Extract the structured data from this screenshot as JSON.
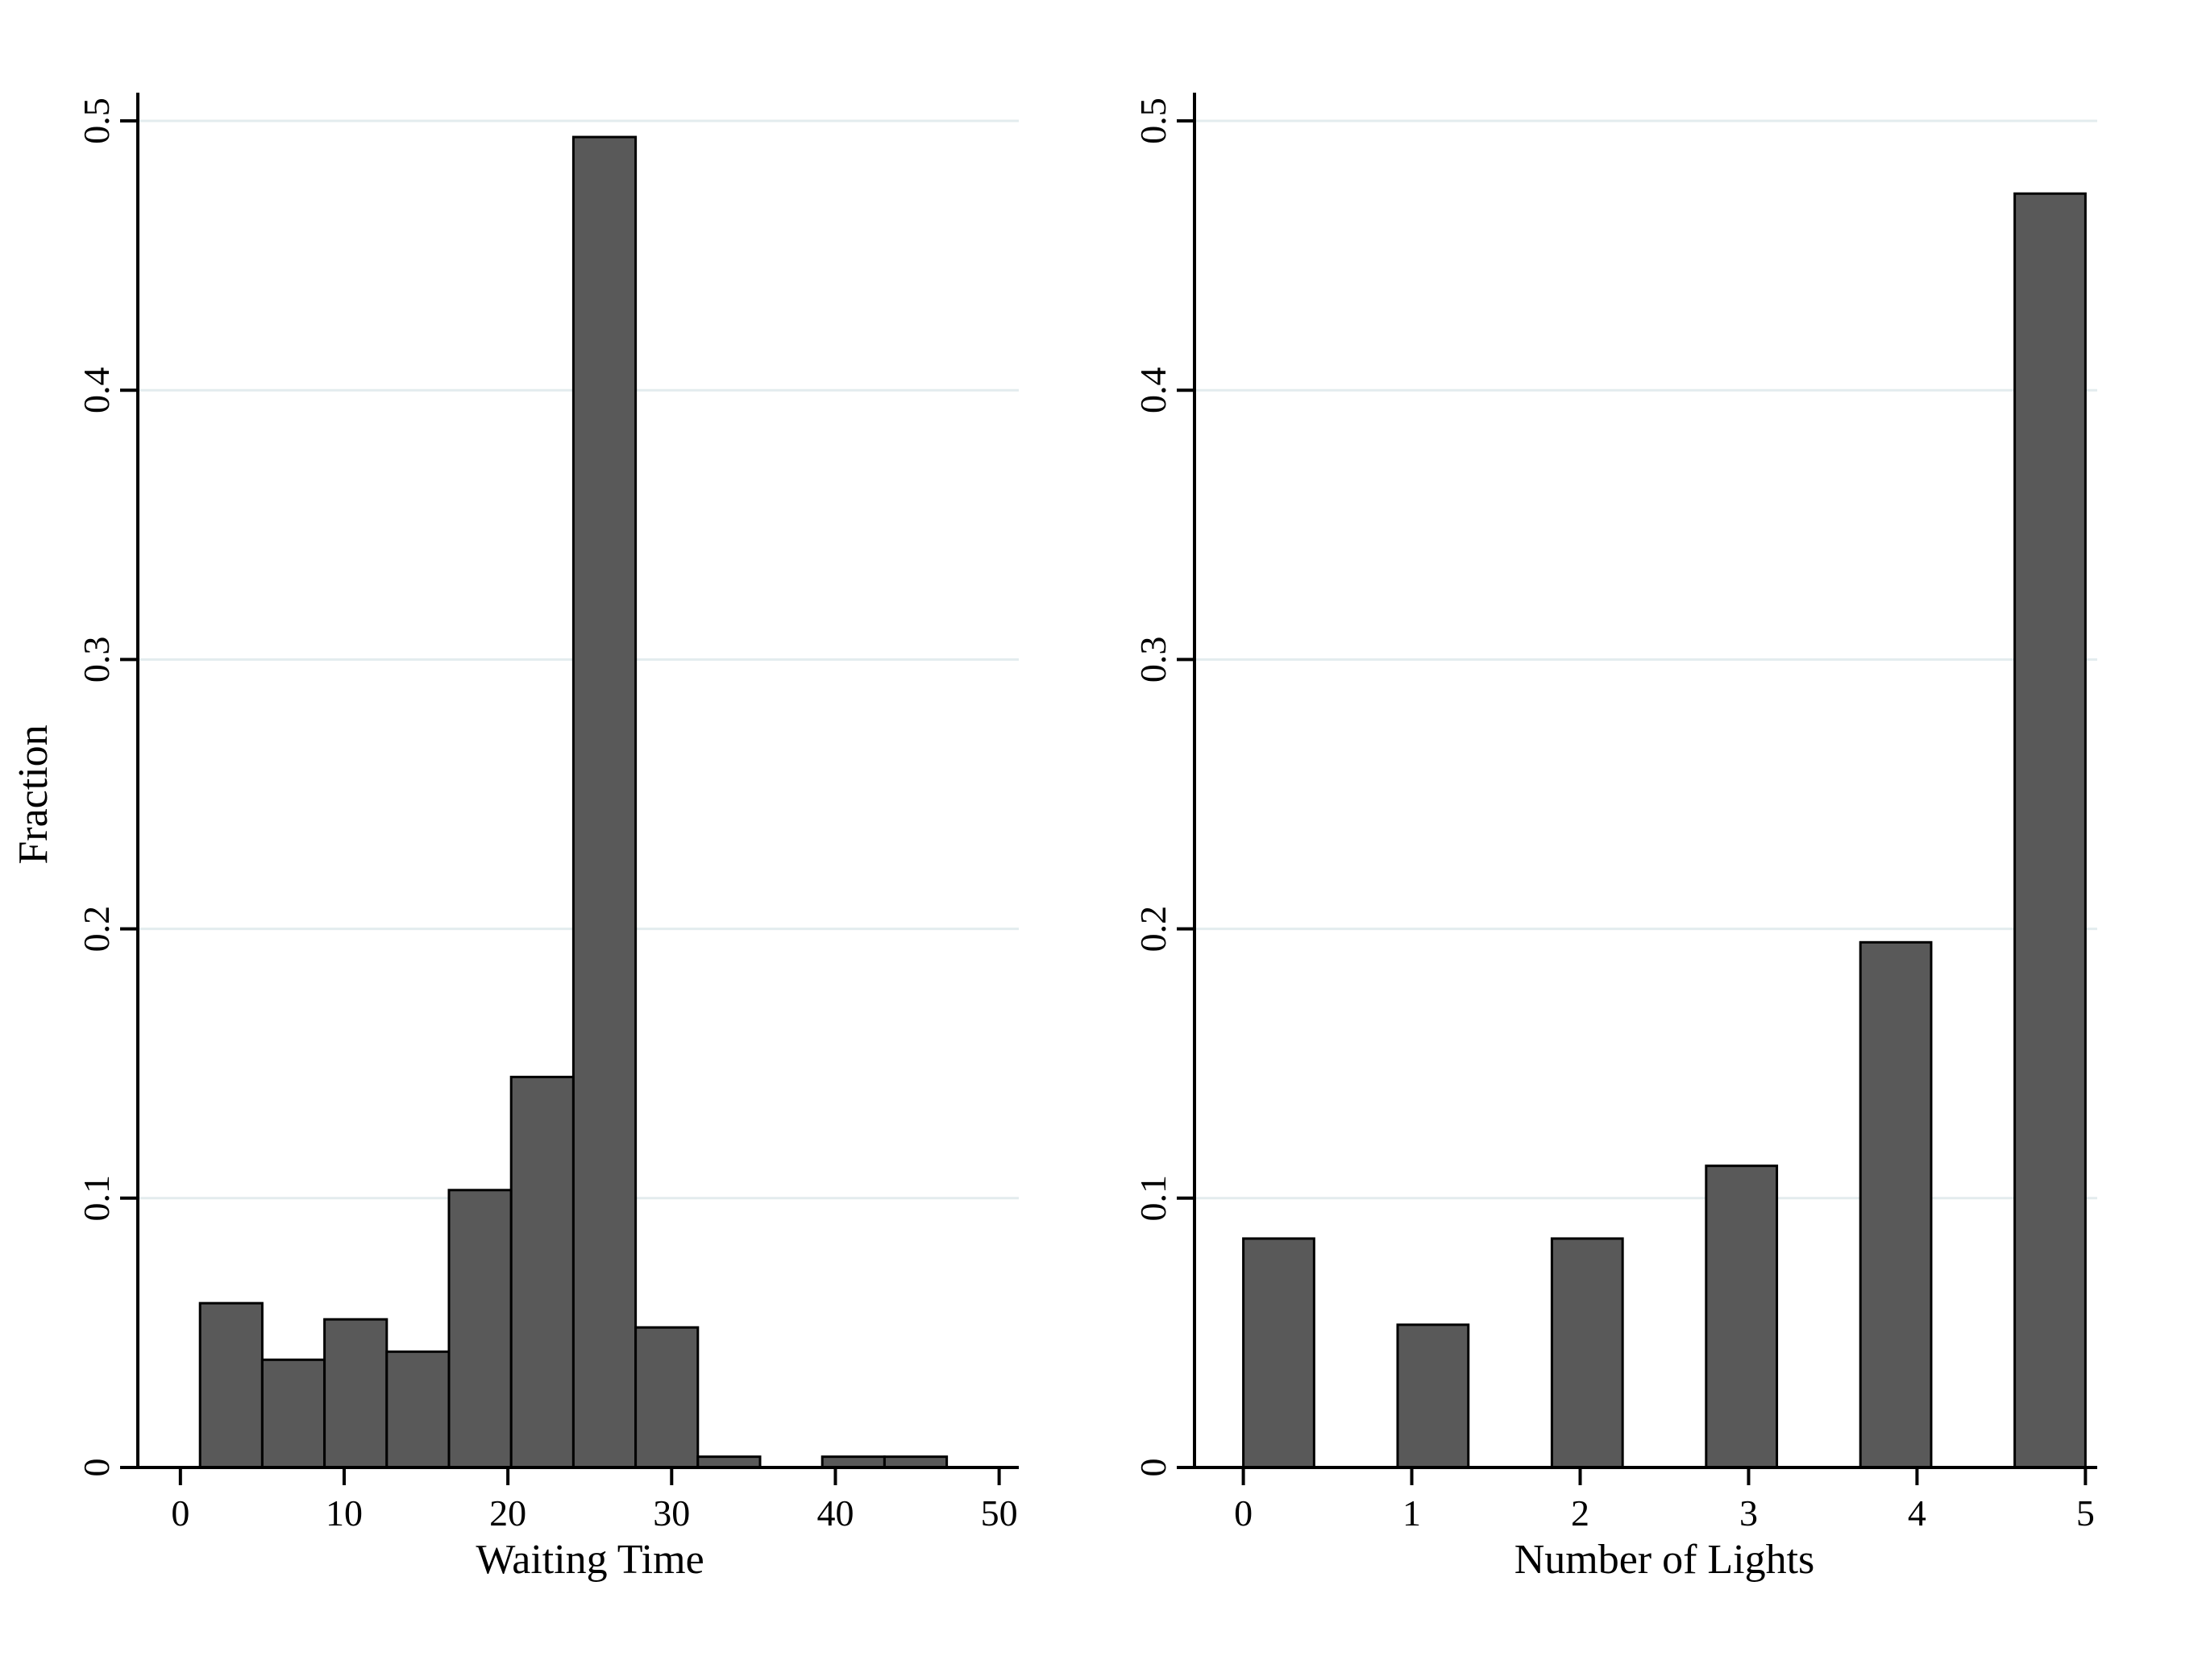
{
  "figure": {
    "background": "#ffffff",
    "axis_color": "#000000"
  },
  "chart_data": [
    {
      "type": "bar",
      "subtype": "histogram",
      "title": "",
      "xlabel": "Waiting Time",
      "ylabel": "Fraction",
      "xlim": [
        -2.6,
        51.2
      ],
      "ylim": [
        0,
        0.5
      ],
      "xticks": [
        0,
        10,
        20,
        30,
        40,
        50
      ],
      "xtick_labels": [
        "0",
        "10",
        "20",
        "30",
        "40",
        "50"
      ],
      "yticks": [
        0,
        0.1,
        0.2,
        0.3,
        0.4,
        0.5
      ],
      "ytick_labels": [
        "0",
        "0.1",
        "0.2",
        "0.3",
        "0.4",
        "0.5"
      ],
      "grid": "horizontal-gridlines",
      "grid_color": "#e3ecee",
      "bar_fill": "#595959",
      "bar_stroke": "#000000",
      "bins": {
        "start": 1.2,
        "width": 3.8,
        "heights": [
          0.061,
          0.04,
          0.055,
          0.043,
          0.103,
          0.145,
          0.494,
          0.052,
          0.004,
          0,
          0.004,
          0.004
        ]
      }
    },
    {
      "type": "bar",
      "subtype": "discrete-histogram",
      "title": "",
      "xlabel": "Number of Lights",
      "ylabel": "",
      "xlim": [
        -0.29,
        5.07
      ],
      "ylim": [
        0,
        0.5
      ],
      "xticks": [
        0,
        1,
        2,
        3,
        4,
        5
      ],
      "xtick_labels": [
        "0",
        "1",
        "2",
        "3",
        "4",
        "5"
      ],
      "yticks": [
        0,
        0.1,
        0.2,
        0.3,
        0.4,
        0.5
      ],
      "ytick_labels": [
        "0",
        "0.1",
        "0.2",
        "0.3",
        "0.4",
        "0.5"
      ],
      "grid": "horizontal-gridlines",
      "grid_color": "#e3ecee",
      "bar_fill": "#595959",
      "bar_stroke": "#000000",
      "categories": [
        0,
        1,
        2,
        3,
        4,
        5
      ],
      "values": [
        0.085,
        0.053,
        0.085,
        0.112,
        0.195,
        0.473
      ],
      "bar_width": 0.42
    }
  ]
}
